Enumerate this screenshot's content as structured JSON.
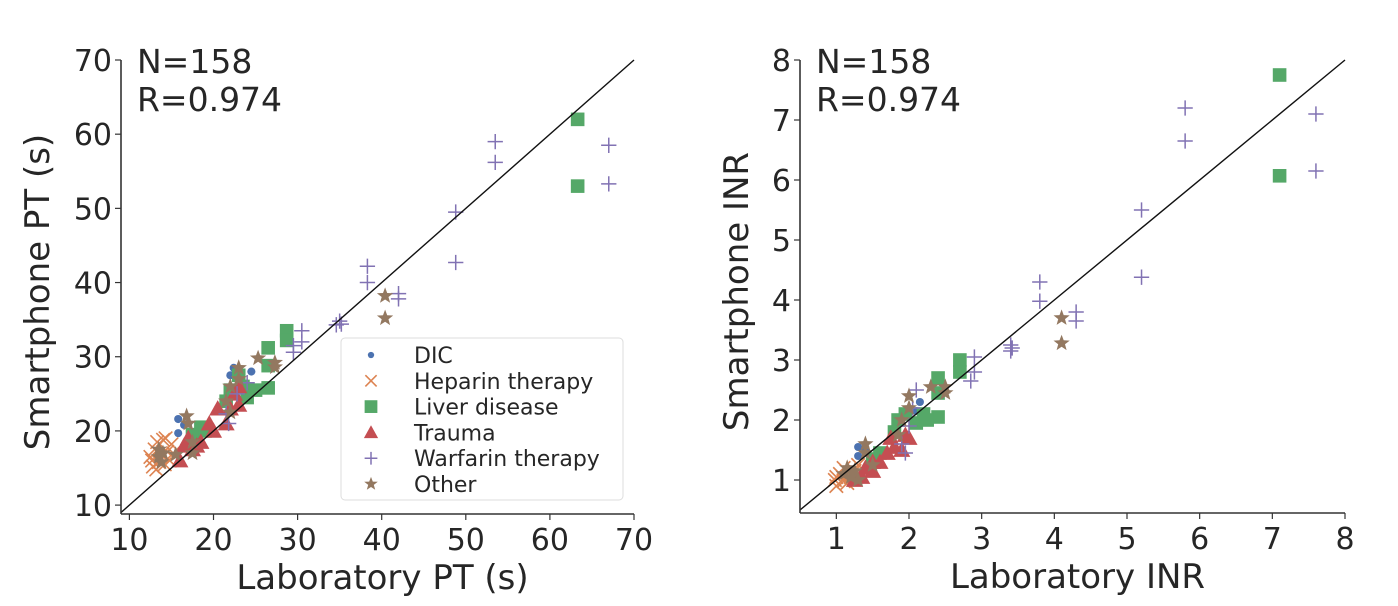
{
  "chart_data": [
    {
      "type": "scatter",
      "id": "pt",
      "xlabel": "Laboratory PT (s)",
      "ylabel": "Smartphone PT (s)",
      "xlim": [
        9,
        70
      ],
      "ylim": [
        8.8,
        70
      ],
      "xticks": [
        10,
        20,
        30,
        40,
        50,
        60,
        70
      ],
      "yticks": [
        10,
        20,
        30,
        40,
        50,
        60,
        70
      ],
      "annotations": [
        "N=158",
        "R=0.974"
      ],
      "identity_line": true,
      "legend": {
        "placement": "lower-right",
        "entries": [
          "DIC",
          "Heparin therapy",
          "Liver disease",
          "Trauma",
          "Warfarin therapy",
          "Other"
        ]
      },
      "series": [
        {
          "name": "DIC",
          "color": "#4c72b0",
          "marker": "circle",
          "points": [
            [
              15.8,
              21.6
            ],
            [
              15.8,
              19.7
            ],
            [
              16.5,
              20.8
            ],
            [
              22.4,
              28.5
            ],
            [
              24.5,
              28
            ],
            [
              17,
              21
            ],
            [
              22,
              27.5
            ]
          ]
        },
        {
          "name": "Heparin therapy",
          "color": "#dd8452",
          "marker": "x",
          "points": [
            [
              12.5,
              16.5
            ],
            [
              12.8,
              15.2
            ],
            [
              13,
              17.5
            ],
            [
              13.3,
              18.5
            ],
            [
              13.5,
              15.8
            ],
            [
              13.8,
              16.8
            ],
            [
              14,
              18.8
            ],
            [
              14.2,
              15.5
            ],
            [
              14.5,
              17.2
            ],
            [
              14.8,
              16
            ],
            [
              15,
              18.2
            ],
            [
              13.2,
              14.8
            ],
            [
              12.7,
              16
            ],
            [
              14.3,
              19
            ],
            [
              15.2,
              17
            ]
          ]
        },
        {
          "name": "Liver disease",
          "color": "#55a868",
          "marker": "square",
          "points": [
            [
              63.3,
              62
            ],
            [
              63.3,
              53
            ],
            [
              28.7,
              33.5
            ],
            [
              28.7,
              32.2
            ],
            [
              26.5,
              31.2
            ],
            [
              26.5,
              28.8
            ],
            [
              26.5,
              25.8
            ],
            [
              25,
              25.5
            ],
            [
              24,
              24.5
            ],
            [
              23,
              27.5
            ],
            [
              22,
              25.5
            ],
            [
              21.5,
              24
            ],
            [
              18.5,
              20.5
            ],
            [
              17.5,
              19.5
            ],
            [
              19,
              20
            ],
            [
              23.5,
              26
            ]
          ]
        },
        {
          "name": "Trauma",
          "color": "#c44e52",
          "marker": "triangle",
          "points": [
            [
              16,
              16
            ],
            [
              16.5,
              18
            ],
            [
              17.5,
              17.5
            ],
            [
              18,
              18
            ],
            [
              18.5,
              18.5
            ],
            [
              20,
              20
            ],
            [
              20.5,
              23
            ],
            [
              21.5,
              21
            ],
            [
              22,
              23
            ],
            [
              23,
              23.5
            ],
            [
              23,
              26
            ],
            [
              22.5,
              25
            ],
            [
              17,
              19
            ],
            [
              19.5,
              21
            ]
          ]
        },
        {
          "name": "Warfarin therapy",
          "color": "#8172b3",
          "marker": "plus",
          "points": [
            [
              67,
              58.5
            ],
            [
              67,
              53.3
            ],
            [
              53.5,
              59
            ],
            [
              53.5,
              56.2
            ],
            [
              48.8,
              49.5
            ],
            [
              48.8,
              42.7
            ],
            [
              38.3,
              42.2
            ],
            [
              38.3,
              40
            ],
            [
              42,
              38.5
            ],
            [
              42,
              37.8
            ],
            [
              35,
              34.8
            ],
            [
              34.6,
              34.3
            ],
            [
              35.2,
              34.4
            ],
            [
              30.5,
              33.5
            ],
            [
              30.5,
              32
            ],
            [
              29.5,
              30.6
            ],
            [
              29.5,
              31.5
            ],
            [
              24,
              26.5
            ],
            [
              22.8,
              25
            ],
            [
              21.5,
              22.3
            ],
            [
              21.8,
              21
            ]
          ]
        },
        {
          "name": "Other",
          "color": "#937860",
          "marker": "star",
          "points": [
            [
              40.4,
              38.2
            ],
            [
              40.4,
              35.2
            ],
            [
              25.3,
              29.8
            ],
            [
              27.3,
              29.2
            ],
            [
              27.3,
              28.6
            ],
            [
              23,
              28.5
            ],
            [
              23,
              27
            ],
            [
              22,
              26
            ],
            [
              21.5,
              24
            ],
            [
              22,
              22.5
            ],
            [
              16.8,
              22
            ],
            [
              17,
              21
            ],
            [
              17.5,
              18.5
            ],
            [
              17.5,
              17
            ],
            [
              13.5,
              17.5
            ],
            [
              13.5,
              16.5
            ],
            [
              13.8,
              15.8
            ],
            [
              14,
              17
            ],
            [
              15.5,
              16.8
            ]
          ]
        }
      ]
    },
    {
      "type": "scatter",
      "id": "inr",
      "xlabel": "Laboratory INR",
      "ylabel": "Smartphone INR",
      "xlim": [
        0.5,
        8
      ],
      "ylim": [
        0.45,
        8
      ],
      "xticks": [
        1,
        2,
        3,
        4,
        5,
        6,
        7,
        8
      ],
      "yticks": [
        1,
        2,
        3,
        4,
        5,
        6,
        7,
        8
      ],
      "annotations": [
        "N=158",
        "R=0.974"
      ],
      "identity_line": true,
      "series": [
        {
          "name": "DIC",
          "color": "#4c72b0",
          "marker": "circle",
          "points": [
            [
              1.3,
              1.55
            ],
            [
              1.3,
              1.4
            ],
            [
              2.15,
              2.3
            ],
            [
              2.1,
              2.15
            ],
            [
              1.4,
              1.5
            ]
          ]
        },
        {
          "name": "Heparin therapy",
          "color": "#dd8452",
          "marker": "x",
          "points": [
            [
              0.98,
              1.0
            ],
            [
              1.0,
              0.9
            ],
            [
              1.05,
              1.1
            ],
            [
              1.1,
              1.2
            ],
            [
              1.15,
              0.95
            ],
            [
              1.2,
              1.05
            ],
            [
              1.25,
              1.15
            ],
            [
              1.0,
              1.05
            ],
            [
              1.1,
              0.98
            ],
            [
              1.3,
              1.25
            ]
          ]
        },
        {
          "name": "Liver disease",
          "color": "#55a868",
          "marker": "square",
          "points": [
            [
              7.1,
              7.75
            ],
            [
              7.1,
              6.07
            ],
            [
              2.7,
              3.0
            ],
            [
              2.7,
              2.8
            ],
            [
              2.4,
              2.7
            ],
            [
              2.4,
              2.45
            ],
            [
              2.4,
              2.05
            ],
            [
              2.25,
              2.0
            ],
            [
              2.1,
              1.95
            ],
            [
              1.95,
              2.1
            ],
            [
              1.85,
              2.0
            ],
            [
              1.8,
              1.8
            ],
            [
              1.6,
              1.45
            ],
            [
              1.5,
              1.35
            ],
            [
              2.2,
              2.1
            ]
          ]
        },
        {
          "name": "Trauma",
          "color": "#c44e52",
          "marker": "triangle",
          "points": [
            [
              1.25,
              1.0
            ],
            [
              1.35,
              1.05
            ],
            [
              1.5,
              1.15
            ],
            [
              1.5,
              1.3
            ],
            [
              1.6,
              1.3
            ],
            [
              1.7,
              1.45
            ],
            [
              1.8,
              1.55
            ],
            [
              1.9,
              1.5
            ],
            [
              1.95,
              1.75
            ],
            [
              1.75,
              1.7
            ],
            [
              2.0,
              1.7
            ],
            [
              1.4,
              1.2
            ]
          ]
        },
        {
          "name": "Warfarin therapy",
          "color": "#8172b3",
          "marker": "plus",
          "points": [
            [
              7.6,
              7.1
            ],
            [
              7.6,
              6.15
            ],
            [
              5.8,
              7.2
            ],
            [
              5.8,
              6.65
            ],
            [
              5.2,
              5.5
            ],
            [
              5.2,
              4.38
            ],
            [
              3.8,
              4.3
            ],
            [
              3.8,
              3.98
            ],
            [
              4.3,
              3.8
            ],
            [
              4.3,
              3.65
            ],
            [
              3.4,
              3.25
            ],
            [
              3.4,
              3.15
            ],
            [
              3.42,
              3.2
            ],
            [
              2.9,
              3.05
            ],
            [
              2.9,
              2.8
            ],
            [
              2.85,
              2.65
            ],
            [
              2.1,
              2.5
            ],
            [
              2.05,
              2.2
            ],
            [
              2.0,
              1.9
            ],
            [
              1.9,
              1.6
            ],
            [
              1.95,
              1.45
            ]
          ]
        },
        {
          "name": "Other",
          "color": "#937860",
          "marker": "star",
          "points": [
            [
              4.1,
              3.7
            ],
            [
              4.1,
              3.28
            ],
            [
              2.5,
              2.55
            ],
            [
              2.5,
              2.45
            ],
            [
              2.3,
              2.55
            ],
            [
              2.0,
              2.4
            ],
            [
              2.0,
              2.2
            ],
            [
              1.9,
              2.0
            ],
            [
              1.85,
              1.75
            ],
            [
              1.4,
              1.6
            ],
            [
              1.4,
              1.45
            ],
            [
              1.5,
              1.25
            ],
            [
              1.15,
              1.2
            ],
            [
              1.2,
              1.05
            ],
            [
              1.25,
              1.15
            ],
            [
              1.3,
              1.0
            ],
            [
              1.1,
              1.1
            ]
          ]
        }
      ]
    }
  ]
}
